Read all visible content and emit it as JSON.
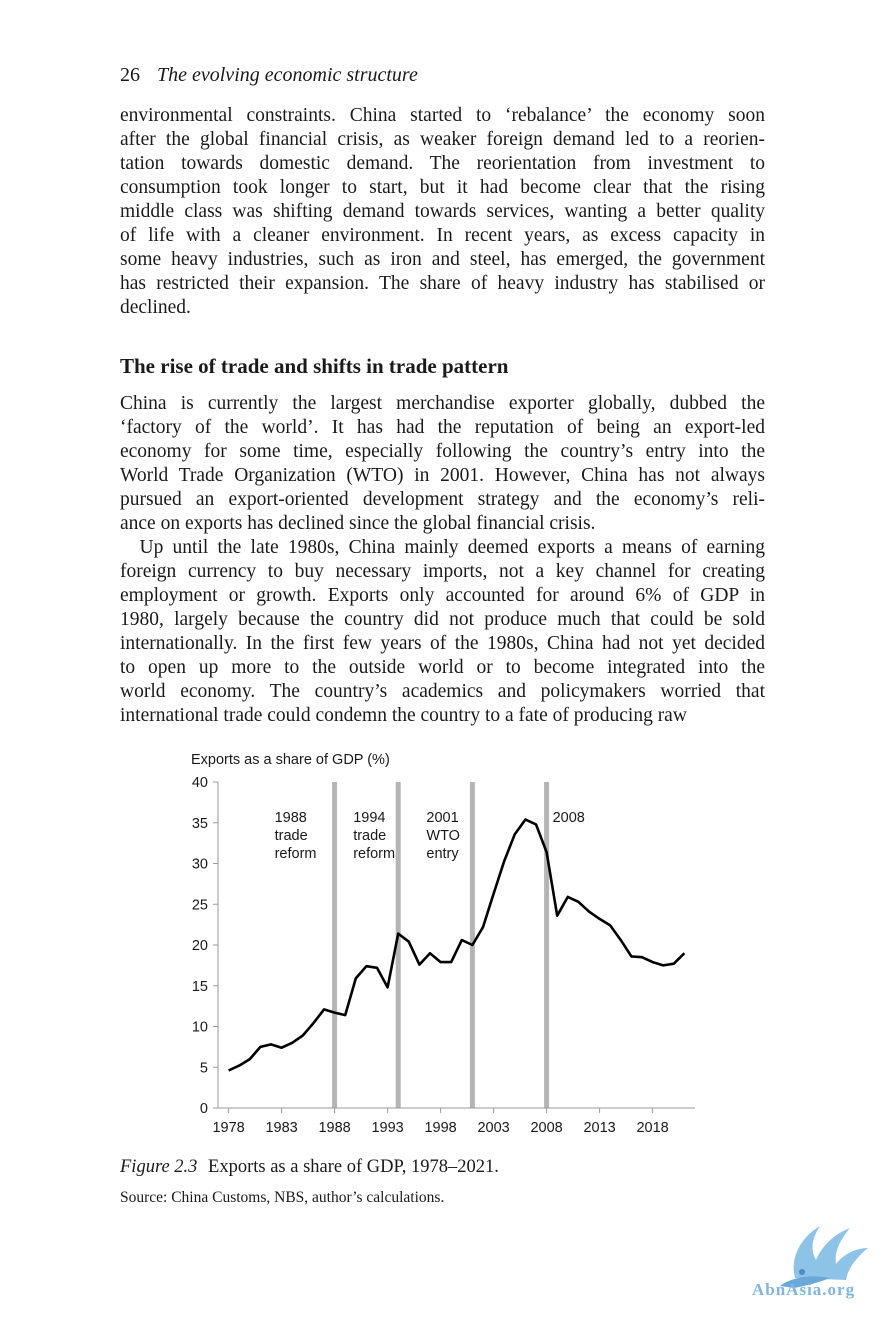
{
  "header": {
    "page_number": "26",
    "title": "The evolving economic structure"
  },
  "para1": [
    "environmental constraints. China started to ‘rebalance’ the economy soon",
    "after the global financial crisis, as weaker foreign demand led to a reorien-",
    "tation towards domestic demand. The reorientation from investment to",
    "consumption took longer to start, but it had become clear that the rising",
    "middle class was shifting demand towards services, wanting a better quality",
    "of life with a cleaner environment. In recent years, as excess capacity in",
    "some heavy industries, such as iron and steel, has emerged, the government",
    "has restricted their expansion. The share of heavy industry has stabilised or",
    "declined."
  ],
  "section_heading": "The rise of trade and shifts in trade pattern",
  "para2": [
    "China is currently the largest merchandise exporter globally, dubbed the",
    "‘factory of the world’. It has had the reputation of being an export-led",
    "economy for some time, especially following the country’s entry into the",
    "World Trade Organization (WTO) in 2001. However, China has not always",
    "pursued an export-oriented development strategy and the economy’s reli-",
    "ance on exports has declined since the global financial crisis."
  ],
  "para3": [
    " Up until the late 1980s, China mainly deemed exports a means of earning",
    "foreign currency to buy necessary imports, not a key channel for creating",
    "employment or growth. Exports only accounted for around 6% of GDP in",
    "1980, largely because the country did not produce much that could be sold",
    "internationally. In the first few years of the 1980s, China had not yet decided",
    "to open up more to the outside world or to become integrated into the",
    "world economy. The country’s academics and policymakers worried that",
    "international trade could condemn the country to a fate of producing raw"
  ],
  "chart_data": {
    "type": "line",
    "title": "Exports as a share of GDP (%)",
    "xlabel": "",
    "ylabel": "",
    "ylim": [
      0,
      40
    ],
    "xlim": [
      1977,
      2022
    ],
    "yticks": [
      "0",
      "5",
      "10",
      "15",
      "20",
      "25",
      "30",
      "35",
      "40"
    ],
    "xticks": [
      "1978",
      "1983",
      "1988",
      "1993",
      "1998",
      "2003",
      "2008",
      "2013",
      "2018"
    ],
    "grid": false,
    "x": [
      1978,
      1979,
      1980,
      1981,
      1982,
      1983,
      1984,
      1985,
      1986,
      1987,
      1988,
      1989,
      1990,
      1991,
      1992,
      1993,
      1994,
      1995,
      1996,
      1997,
      1998,
      1999,
      2000,
      2001,
      2002,
      2003,
      2004,
      2005,
      2006,
      2007,
      2008,
      2009,
      2010,
      2011,
      2012,
      2013,
      2014,
      2015,
      2016,
      2017,
      2018,
      2019,
      2020,
      2021
    ],
    "values": [
      4.6,
      5.2,
      6.0,
      7.5,
      7.8,
      7.4,
      8.0,
      8.9,
      10.4,
      12.1,
      11.7,
      11.4,
      15.9,
      17.4,
      17.2,
      14.8,
      21.4,
      20.4,
      17.6,
      19.0,
      17.9,
      17.9,
      20.6,
      20.0,
      22.2,
      26.3,
      30.3,
      33.6,
      35.4,
      34.8,
      31.4,
      23.6,
      25.9,
      25.3,
      24.1,
      23.2,
      22.4,
      20.6,
      18.6,
      18.5,
      17.9,
      17.5,
      17.7,
      19.0
    ],
    "series_color": "#000000",
    "annotations": [
      {
        "x": 1988,
        "lines": [
          "1988",
          "trade",
          "reform"
        ]
      },
      {
        "x": 1994,
        "lines": [
          "1994",
          "trade",
          "reform"
        ]
      },
      {
        "x": 2001,
        "lines": [
          "2001",
          "WTO",
          "entry"
        ]
      },
      {
        "x": 2008,
        "lines": [
          "2008"
        ]
      }
    ],
    "event_line_color": "#b5b5b5"
  },
  "caption": {
    "label": "Figure 2.3",
    "text": "Exports as a share of GDP, 1978–2021."
  },
  "source": "Source: China Customs, NBS, author’s calculations.",
  "watermark": {
    "text": "AbnAsia.org",
    "color": "#7fb7e0"
  }
}
